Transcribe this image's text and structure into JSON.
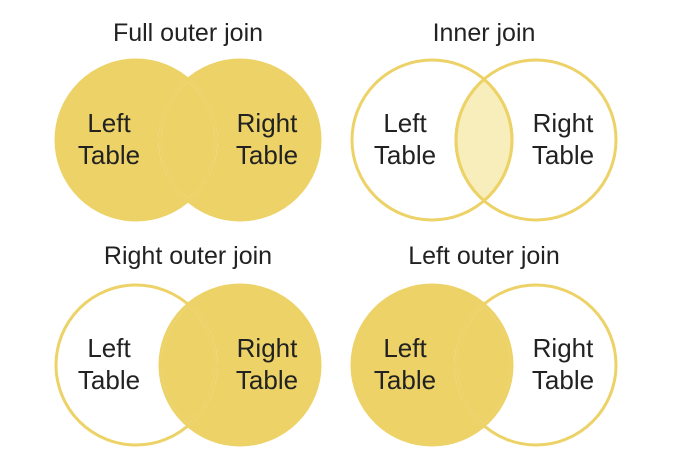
{
  "colors": {
    "fill": "#ecd267",
    "light_fill": "#f8eebb",
    "stroke": "#ecd267",
    "text": "#222222",
    "background": "#ffffff"
  },
  "panels": [
    {
      "title": "Full outer join",
      "left_label": [
        "Left",
        "Table"
      ],
      "right_label": [
        "Right",
        "Table"
      ],
      "highlight": {
        "left": true,
        "overlap": true,
        "right": true,
        "overlap_light": false
      }
    },
    {
      "title": "Inner join",
      "left_label": [
        "Left",
        "Table"
      ],
      "right_label": [
        "Right",
        "Table"
      ],
      "highlight": {
        "left": false,
        "overlap": true,
        "right": false,
        "overlap_light": true
      }
    },
    {
      "title": "Right outer join",
      "left_label": [
        "Left",
        "Table"
      ],
      "right_label": [
        "Right",
        "Table"
      ],
      "highlight": {
        "left": false,
        "overlap": true,
        "right": true,
        "overlap_light": false
      }
    },
    {
      "title": "Left outer join",
      "left_label": [
        "Left",
        "Table"
      ],
      "right_label": [
        "Right",
        "Table"
      ],
      "highlight": {
        "left": true,
        "overlap": true,
        "right": false,
        "overlap_light": false
      }
    }
  ]
}
